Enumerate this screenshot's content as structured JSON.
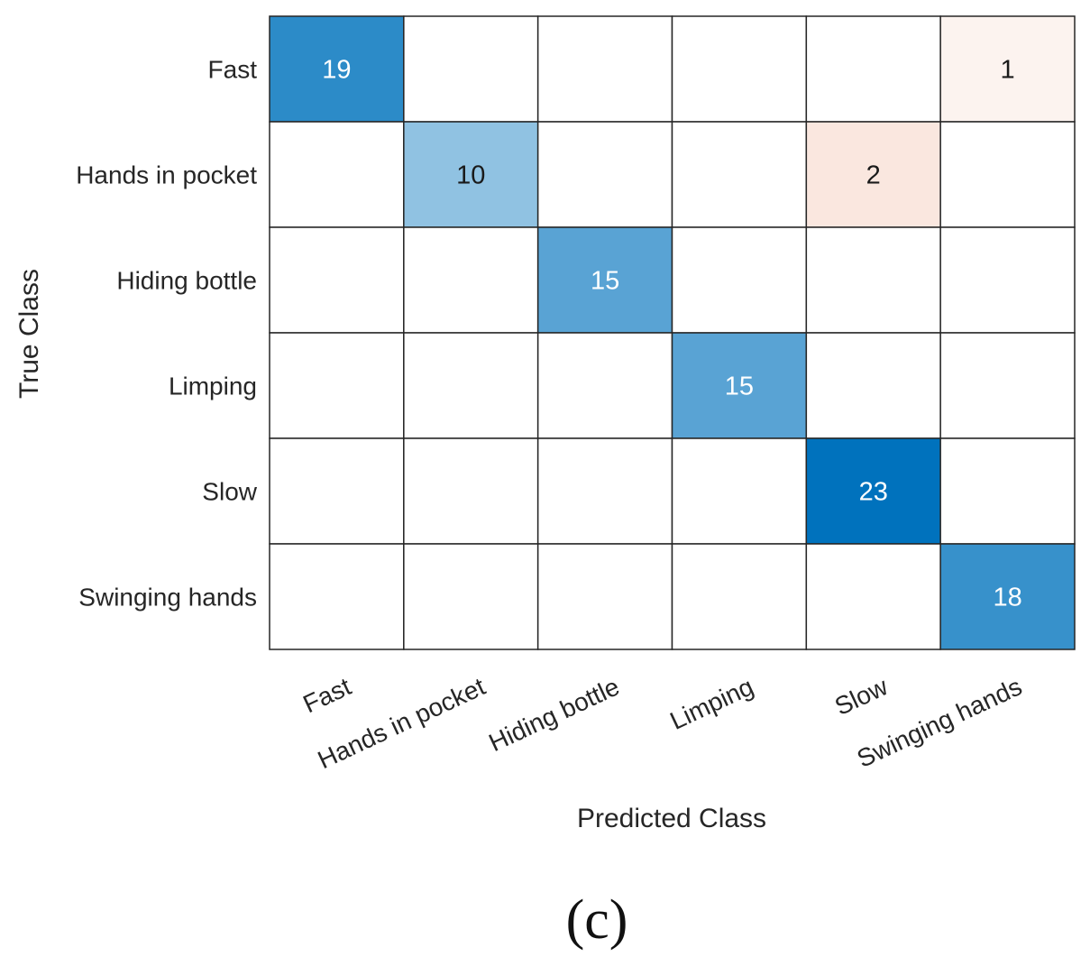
{
  "chart_data": {
    "type": "heatmap",
    "title": "",
    "xlabel": "Predicted Class",
    "ylabel": "True Class",
    "rows": [
      "Fast",
      "Hands in pocket",
      "Hiding bottle",
      "Limping",
      "Slow",
      "Swinging hands"
    ],
    "columns": [
      "Fast",
      "Hands in pocket",
      "Hiding bottle",
      "Limping",
      "Slow",
      "Swinging hands"
    ],
    "values": [
      [
        19,
        0,
        0,
        0,
        0,
        1
      ],
      [
        0,
        10,
        0,
        0,
        2,
        0
      ],
      [
        0,
        0,
        15,
        0,
        0,
        0
      ],
      [
        0,
        0,
        0,
        15,
        0,
        0
      ],
      [
        0,
        0,
        0,
        0,
        23,
        0
      ],
      [
        0,
        0,
        0,
        0,
        0,
        18
      ]
    ],
    "zero_cells_blank": true,
    "colors": {
      "correct_max": "#0072bd",
      "correct_min": "#ffffff",
      "error_max": "#d95319",
      "grid": "#262626",
      "background": "#ffffff"
    }
  },
  "caption": "(c)"
}
